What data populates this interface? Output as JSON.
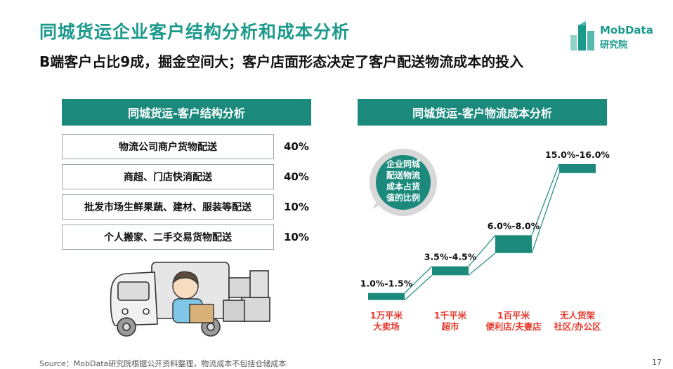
{
  "title": "同城货运企业客户结构分析和成本分析",
  "subtitle": "B端客户占比9成，掘金空间大；客户店面形态决定了客户配送物流成本的投入",
  "logo": {
    "line1": "MobData",
    "line2": "研究院"
  },
  "left_panel": {
    "header": "同城货运-客户结构分析",
    "rows": [
      {
        "label": "物流公司商户货物配送",
        "value": "40%"
      },
      {
        "label": "商超、门店快消配送",
        "value": "40%"
      },
      {
        "label": "批发市场生鲜果蔬、建材、服装等配送",
        "value": "10%"
      },
      {
        "label": "个人搬家、二手交易货物配送",
        "value": "10%"
      }
    ]
  },
  "right_panel": {
    "header": "同城货运-客户物流成本分析"
  },
  "chart_data": {
    "type": "bar",
    "title": "同城货运-客户物流成本分析",
    "callout": [
      "企业同城",
      "配送物流",
      "成本占货",
      "值的比例"
    ],
    "categories": [
      [
        "1万平米",
        "大卖场"
      ],
      [
        "1千平米",
        "超市"
      ],
      [
        "1百平米",
        "便利店/夫妻店"
      ],
      [
        "无人货架",
        "社区/办公区"
      ]
    ],
    "ranges": [
      [
        1.0,
        1.5
      ],
      [
        3.5,
        4.5
      ],
      [
        6.0,
        8.0
      ],
      [
        15.0,
        16.0
      ]
    ],
    "labels": [
      "1.0%-1.5%",
      "3.5%-4.5%",
      "6.0%-8.0%",
      "15.0%-16.0%"
    ],
    "colors": {
      "bar": "#1b8a7c",
      "category": "#e8382c"
    }
  },
  "source": "Source：MobData研究院根据公开资料整理，物流成本不包括仓储成本",
  "page_number": "17",
  "colors": {
    "accent": "#1b9a8c",
    "header": "#1b8a7c"
  }
}
